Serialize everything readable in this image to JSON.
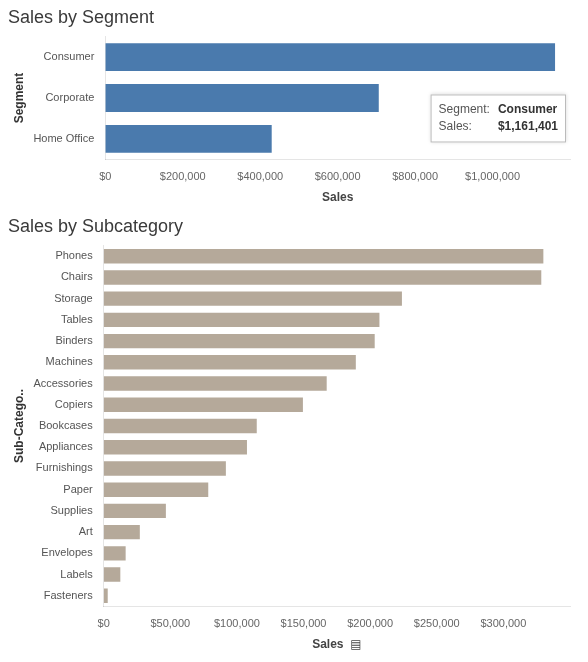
{
  "chart_data": [
    {
      "type": "bar",
      "orientation": "horizontal",
      "title": "Sales by Segment",
      "xlabel": "Sales",
      "ylabel": "Segment",
      "categories": [
        "Consumer",
        "Corporate",
        "Home Office"
      ],
      "values": [
        1161401,
        706146,
        429653
      ],
      "color": "#4a7aad",
      "xlim": [
        0,
        1200000
      ],
      "xticks": [
        {
          "value": 0,
          "label": "$0"
        },
        {
          "value": 200000,
          "label": "$200,000"
        },
        {
          "value": 400000,
          "label": "$400,000"
        },
        {
          "value": 600000,
          "label": "$600,000"
        },
        {
          "value": 800000,
          "label": "$800,000"
        },
        {
          "value": 1000000,
          "label": "$1,000,000"
        }
      ],
      "grid": false,
      "annotations": [
        [
          "Segment:",
          "Consumer"
        ],
        [
          "Sales:",
          "$1,161,401"
        ]
      ]
    },
    {
      "type": "bar",
      "orientation": "horizontal",
      "title": "Sales by Subcategory",
      "xlabel": "Sales  ▤",
      "ylabel": "Sub-Catego..",
      "categories": [
        "Phones",
        "Chairs",
        "Storage",
        "Tables",
        "Binders",
        "Machines",
        "Accessories",
        "Copiers",
        "Bookcases",
        "Appliances",
        "Furnishings",
        "Paper",
        "Supplies",
        "Art",
        "Envelopes",
        "Labels",
        "Fasteners"
      ],
      "values": [
        330007,
        328449,
        223844,
        206966,
        203413,
        189239,
        167380,
        149528,
        114880,
        107532,
        91705,
        78479,
        46674,
        27119,
        16476,
        12486,
        3024
      ],
      "color": "#b5a99a",
      "xlim": [
        0,
        350000
      ],
      "xticks": [
        {
          "value": 0,
          "label": "$0"
        },
        {
          "value": 50000,
          "label": "$50,000"
        },
        {
          "value": 100000,
          "label": "$100,000"
        },
        {
          "value": 150000,
          "label": "$150,000"
        },
        {
          "value": 200000,
          "label": "$200,000"
        },
        {
          "value": 250000,
          "label": "$250,000"
        },
        {
          "value": 300000,
          "label": "$300,000"
        }
      ],
      "grid": false
    }
  ]
}
